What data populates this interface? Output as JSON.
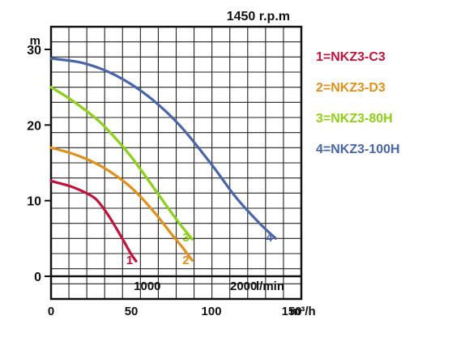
{
  "chart_data": {
    "type": "line",
    "title": "1450 r.p.m",
    "ylabel": "m",
    "xlabel_top": "l/min",
    "xlabel_bottom": "m³/h",
    "ylim": [
      -3,
      33
    ],
    "xlim": [
      0,
      156
    ],
    "grid": true,
    "y_ticks": [
      "0",
      "10",
      "20",
      "30"
    ],
    "y_tick_values": [
      0,
      10,
      20,
      30
    ],
    "x_ticks_top": [
      "1000",
      "2000"
    ],
    "x_ticks_top_values": [
      60,
      120
    ],
    "x_ticks_bottom": [
      "0",
      "50",
      "100",
      "150"
    ],
    "x_ticks_bottom_values": [
      0,
      50,
      100,
      150
    ],
    "series": [
      {
        "name": "1=NKZ3-C3",
        "marker": "1",
        "color": "#c0143c",
        "x": [
          0,
          12,
          22,
          28,
          34,
          40,
          46,
          50,
          53
        ],
        "y": [
          12.6,
          11.9,
          11.0,
          10.2,
          8.6,
          6.6,
          4.4,
          2.9,
          2.0
        ],
        "marker_at": [
          49,
          1.6
        ]
      },
      {
        "name": "2=NKZ3-D3",
        "marker": "2",
        "color": "#e0901c",
        "x": [
          0,
          15,
          30,
          45,
          55,
          65,
          75,
          82,
          88
        ],
        "y": [
          17.0,
          16.1,
          14.7,
          12.6,
          10.7,
          8.3,
          5.6,
          3.8,
          2.1
        ],
        "marker_at": [
          84,
          1.6
        ]
      },
      {
        "name": "3=NKZ3-80H",
        "marker": "3",
        "color": "#8ecf1a",
        "x": [
          0,
          10,
          20,
          30,
          40,
          50,
          60,
          70,
          80,
          88
        ],
        "y": [
          25.0,
          23.7,
          22.2,
          20.5,
          18.3,
          15.8,
          12.9,
          9.9,
          7.0,
          4.9
        ],
        "marker_at": [
          84,
          4.6
        ]
      },
      {
        "name": "4=NKZ3-100H",
        "marker": "4",
        "color": "#4a66a8",
        "x": [
          0,
          20,
          40,
          60,
          80,
          100,
          115,
          130,
          140
        ],
        "y": [
          28.8,
          28.2,
          26.6,
          23.9,
          20.0,
          14.8,
          10.5,
          7.0,
          5.0
        ],
        "marker_at": [
          136,
          4.6
        ]
      }
    ]
  }
}
